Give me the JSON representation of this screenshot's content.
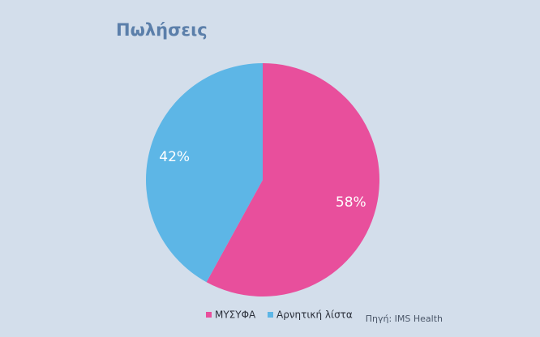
{
  "chart_data": {
    "type": "pie",
    "title": "Πωλήσεις",
    "categories": [
      "ΜΥΣΥΦΑ",
      "Αρνητική λίστα"
    ],
    "values": [
      58,
      42
    ],
    "value_labels": [
      "58%",
      "42%"
    ],
    "colors": [
      "#e84f9c",
      "#5db6e6"
    ],
    "legend": "bottom",
    "source": "Πηγή: IMS Health"
  }
}
